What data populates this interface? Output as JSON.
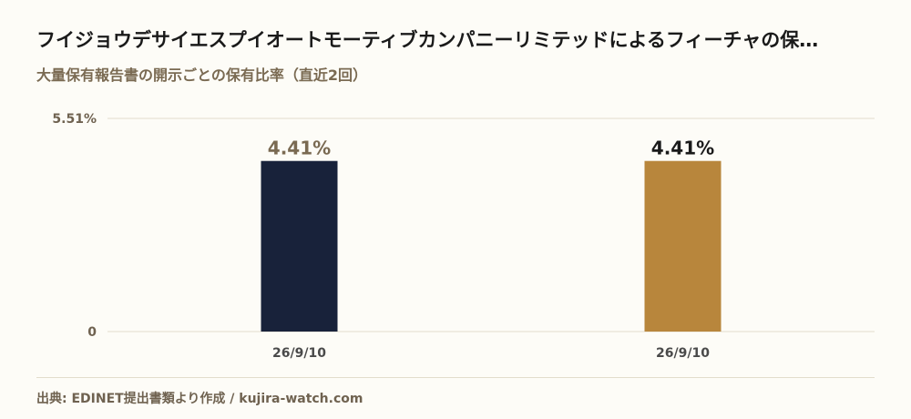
{
  "header": {
    "title": "フイジョウデサイエスプイオートモーティブカンパニーリミテッドによるフィーチャの保…",
    "subtitle": "大量保有報告書の開示ごとの保有比率（直近2回）"
  },
  "footer": {
    "source": "出典: EDINET提出書類より作成 / kujira-watch.com"
  },
  "chart_data": {
    "type": "bar",
    "categories": [
      "26/9/10",
      "26/9/10"
    ],
    "values": [
      4.41,
      4.41
    ],
    "value_labels": [
      "4.41%",
      "4.41%"
    ],
    "colors": [
      "#18223a",
      "#b8863c"
    ],
    "label_colors": [
      "#7a6a52",
      "#1a1a1a"
    ],
    "ylim": [
      0,
      5.51
    ],
    "yticks": [
      {
        "value": 0,
        "label": "0"
      },
      {
        "value": 5.51,
        "label": "5.51%"
      }
    ],
    "grid": true
  }
}
